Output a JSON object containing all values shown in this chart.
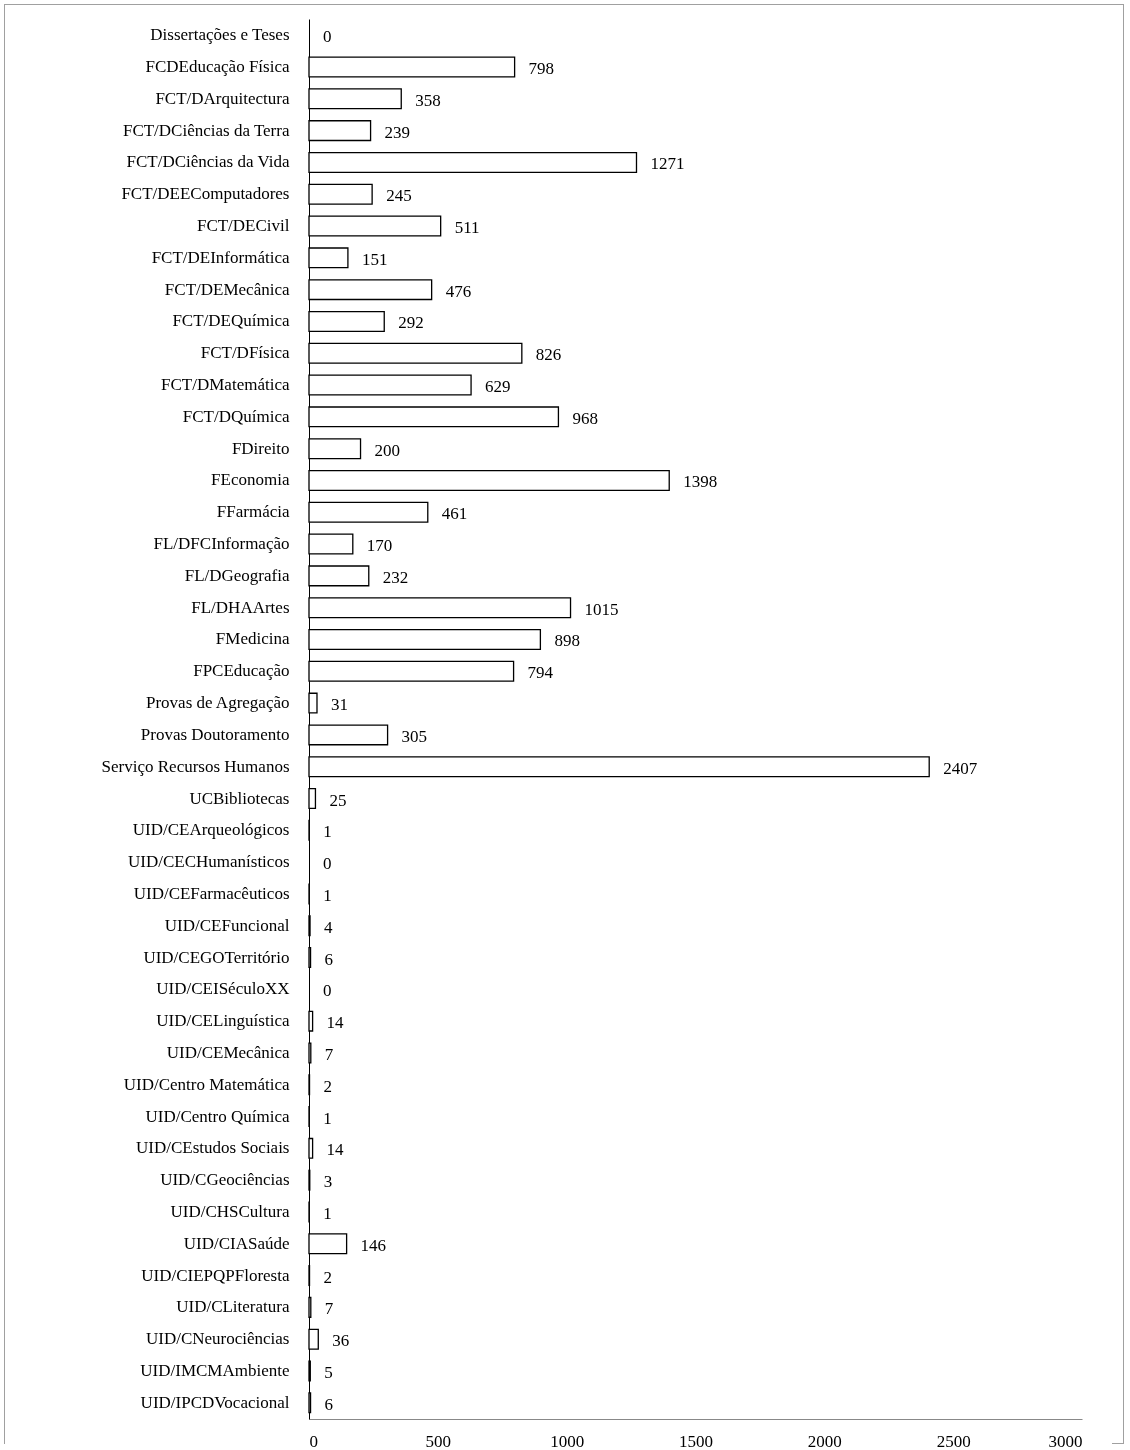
{
  "chart_data": {
    "type": "bar",
    "orientation": "horizontal",
    "categories": [
      "Dissertações e Teses",
      "FCDEducação Física",
      "FCT/DArquitectura",
      "FCT/DCiências da Terra",
      "FCT/DCiências da Vida",
      "FCT/DEEComputadores",
      "FCT/DECivil",
      "FCT/DEInformática",
      "FCT/DEMecânica",
      "FCT/DEQuímica",
      "FCT/DFísica",
      "FCT/DMatemática",
      "FCT/DQuímica",
      "FDireito",
      "FEconomia",
      "FFarmácia",
      "FL/DFCInformação",
      "FL/DGeografia",
      "FL/DHAArtes",
      "FMedicina",
      "FPCEducação",
      "Provas de Agregação",
      "Provas Doutoramento",
      "Serviço Recursos Humanos",
      "UCBibliotecas",
      "UID/CEArqueológicos",
      "UID/CECHumanísticos",
      "UID/CEFarmacêuticos",
      "UID/CEFuncional",
      "UID/CEGOTerritório",
      "UID/CEISéculoXX",
      "UID/CELinguística",
      "UID/CEMecânica",
      "UID/Centro Matemática",
      "UID/Centro Química",
      "UID/CEstudos Sociais",
      "UID/CGeociências",
      "UID/CHSCultura",
      "UID/CIASaúde",
      "UID/CIEPQPFloresta",
      "UID/CLiteratura",
      "UID/CNeurociências",
      "UID/IMCMAmbiente",
      "UID/IPCDVocacional"
    ],
    "values": [
      0,
      798,
      358,
      239,
      1271,
      245,
      511,
      151,
      476,
      292,
      826,
      629,
      968,
      200,
      1398,
      461,
      170,
      232,
      1015,
      898,
      794,
      31,
      305,
      2407,
      25,
      1,
      0,
      1,
      4,
      6,
      0,
      14,
      7,
      2,
      1,
      14,
      3,
      1,
      146,
      2,
      7,
      36,
      5,
      6
    ],
    "color": "#ffffff",
    "xlim": [
      0,
      3000
    ],
    "xticks": [
      0,
      500,
      1000,
      1500,
      2000,
      2500,
      3000
    ],
    "data_labels": true,
    "grid": false
  }
}
